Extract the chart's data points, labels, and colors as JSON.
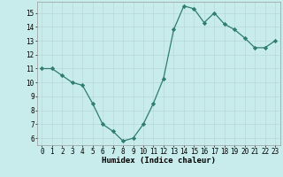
{
  "xlabel": "Humidex (Indice chaleur)",
  "ylabel": "",
  "x": [
    0,
    1,
    2,
    3,
    4,
    5,
    6,
    7,
    8,
    9,
    10,
    11,
    12,
    13,
    14,
    15,
    16,
    17,
    18,
    19,
    20,
    21,
    22,
    23
  ],
  "y": [
    11,
    11,
    10.5,
    10,
    9.8,
    8.5,
    7,
    6.5,
    5.8,
    6,
    7,
    8.5,
    10.3,
    13.8,
    15.5,
    15.3,
    14.3,
    15,
    14.2,
    13.8,
    13.2,
    12.5,
    12.5,
    13
  ],
  "line_color": "#2e7d6e",
  "marker": "D",
  "marker_size": 2.2,
  "bg_color": "#c8ecec",
  "grid_color": "#b8d8d8",
  "ylim": [
    5.5,
    15.8
  ],
  "xlim": [
    -0.5,
    23.5
  ],
  "yticks": [
    6,
    7,
    8,
    9,
    10,
    11,
    12,
    13,
    14,
    15
  ],
  "xticks": [
    0,
    1,
    2,
    3,
    4,
    5,
    6,
    7,
    8,
    9,
    10,
    11,
    12,
    13,
    14,
    15,
    16,
    17,
    18,
    19,
    20,
    21,
    22,
    23
  ],
  "tick_fontsize": 5.5,
  "xlabel_fontsize": 6.5,
  "line_width": 0.9
}
